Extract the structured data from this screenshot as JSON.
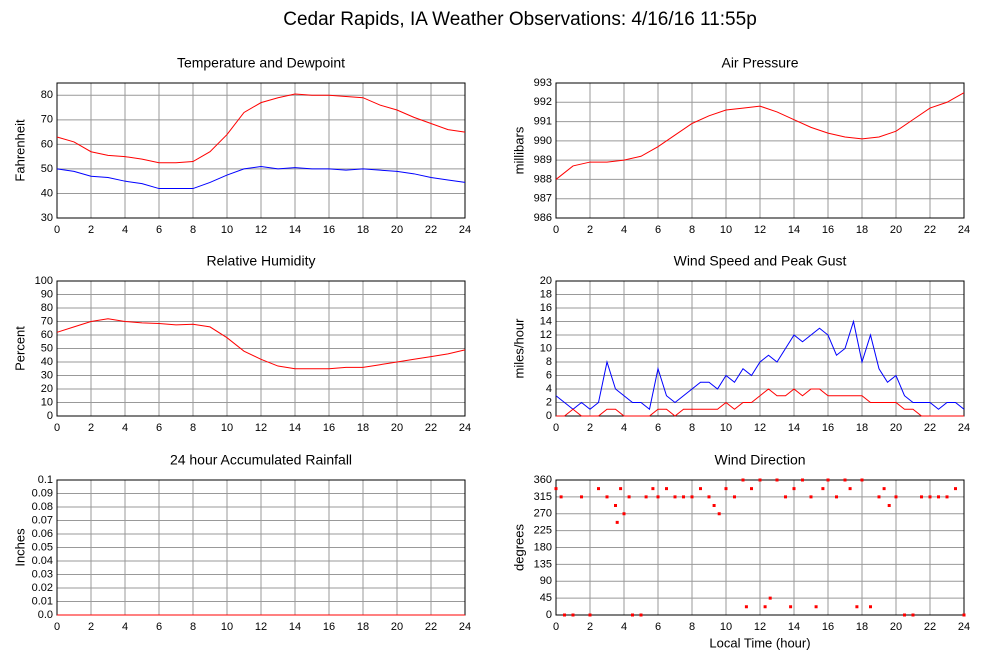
{
  "title": "Cedar Rapids, IA Weather Observations: 4/16/16 11:55p",
  "chart_data": [
    {
      "type": "line",
      "title": "Temperature and Dewpoint",
      "ylabel": "Fahrenheit",
      "x": [
        0,
        1,
        2,
        3,
        4,
        5,
        6,
        7,
        8,
        9,
        10,
        11,
        12,
        13,
        14,
        15,
        16,
        17,
        18,
        19,
        20,
        21,
        22,
        23,
        24
      ],
      "series": [
        {
          "color": "#ff0000",
          "values": [
            63,
            61,
            57,
            55.5,
            55,
            54,
            52.5,
            52.5,
            53,
            57,
            64,
            73,
            77,
            79,
            80.5,
            80,
            80,
            79.5,
            79,
            76,
            74,
            71,
            68.5,
            66,
            65
          ]
        },
        {
          "color": "#0000ff",
          "values": [
            50,
            49,
            47,
            46.5,
            45,
            44,
            42,
            42,
            42,
            44.5,
            47.5,
            50,
            51,
            50,
            50.5,
            50,
            50,
            49.5,
            50,
            49.5,
            49,
            48,
            46.5,
            45.5,
            44.5
          ]
        }
      ],
      "xlim": [
        0,
        24
      ],
      "xticks": [
        0,
        2,
        4,
        6,
        8,
        10,
        12,
        14,
        16,
        18,
        20,
        22,
        24
      ],
      "ylim": [
        30,
        85
      ],
      "yticks": [
        30,
        40,
        50,
        60,
        70,
        80
      ],
      "grid": true
    },
    {
      "type": "line",
      "title": "Air Pressure",
      "ylabel": "millibars",
      "x": [
        0,
        1,
        2,
        3,
        4,
        5,
        6,
        7,
        8,
        9,
        10,
        11,
        12,
        13,
        14,
        15,
        16,
        17,
        18,
        19,
        20,
        21,
        22,
        23,
        24
      ],
      "series": [
        {
          "color": "#ff0000",
          "values": [
            988,
            988.7,
            988.9,
            988.9,
            989,
            989.2,
            989.7,
            990.3,
            990.9,
            991.3,
            991.6,
            991.7,
            991.8,
            991.5,
            991.1,
            990.7,
            990.4,
            990.2,
            990.1,
            990.2,
            990.5,
            991.1,
            991.7,
            992,
            992.5
          ]
        }
      ],
      "xlim": [
        0,
        24
      ],
      "xticks": [
        0,
        2,
        4,
        6,
        8,
        10,
        12,
        14,
        16,
        18,
        20,
        22,
        24
      ],
      "ylim": [
        986,
        993
      ],
      "yticks": [
        986,
        987,
        988,
        989,
        990,
        991,
        992,
        993
      ],
      "grid": true
    },
    {
      "type": "line",
      "title": "Relative Humidity",
      "ylabel": "Percent",
      "x": [
        0,
        1,
        2,
        3,
        4,
        5,
        6,
        7,
        8,
        9,
        10,
        11,
        12,
        13,
        14,
        15,
        16,
        17,
        18,
        19,
        20,
        21,
        22,
        23,
        24
      ],
      "series": [
        {
          "color": "#ff0000",
          "values": [
            62,
            66,
            70,
            72,
            70,
            69,
            68.5,
            67.5,
            68,
            66,
            58,
            48,
            42,
            37,
            35,
            35,
            35,
            36,
            36,
            38,
            40,
            42,
            44,
            46,
            49
          ]
        }
      ],
      "xlim": [
        0,
        24
      ],
      "xticks": [
        0,
        2,
        4,
        6,
        8,
        10,
        12,
        14,
        16,
        18,
        20,
        22,
        24
      ],
      "ylim": [
        0,
        100
      ],
      "yticks": [
        0,
        10,
        20,
        30,
        40,
        50,
        60,
        70,
        80,
        90,
        100
      ],
      "grid": true
    },
    {
      "type": "line",
      "title": "Wind Speed and Peak Gust",
      "ylabel": "miles/hour",
      "x": [
        0,
        0.5,
        1,
        1.5,
        2,
        2.5,
        3,
        3.5,
        4,
        4.5,
        5,
        5.5,
        6,
        6.5,
        7,
        7.5,
        8,
        8.5,
        9,
        9.5,
        10,
        10.5,
        11,
        11.5,
        12,
        12.5,
        13,
        13.5,
        14,
        14.5,
        15,
        15.5,
        16,
        16.5,
        17,
        17.5,
        18,
        18.5,
        19,
        19.5,
        20,
        20.5,
        21,
        21.5,
        22,
        22.5,
        23,
        23.5,
        24
      ],
      "series": [
        {
          "color": "#0000ff",
          "values": [
            3,
            2,
            1,
            2,
            1,
            2,
            8,
            4,
            3,
            2,
            2,
            1,
            7,
            3,
            2,
            3,
            4,
            5,
            5,
            4,
            6,
            5,
            7,
            6,
            8,
            9,
            8,
            10,
            12,
            11,
            12,
            13,
            12,
            9,
            10,
            14,
            8,
            12,
            7,
            5,
            6,
            3,
            2,
            2,
            2,
            1,
            2,
            2,
            1
          ]
        },
        {
          "color": "#ff0000",
          "values": [
            0,
            0,
            1,
            0,
            0,
            0,
            1,
            1,
            0,
            0,
            0,
            0,
            1,
            1,
            0,
            1,
            1,
            1,
            1,
            1,
            2,
            1,
            2,
            2,
            3,
            4,
            3,
            3,
            4,
            3,
            4,
            4,
            3,
            3,
            3,
            3,
            3,
            2,
            2,
            2,
            2,
            1,
            1,
            0,
            0,
            0,
            0,
            0,
            0
          ]
        }
      ],
      "xlim": [
        0,
        24
      ],
      "xticks": [
        0,
        2,
        4,
        6,
        8,
        10,
        12,
        14,
        16,
        18,
        20,
        22,
        24
      ],
      "ylim": [
        0,
        20
      ],
      "yticks": [
        0,
        2,
        4,
        6,
        8,
        10,
        12,
        14,
        16,
        18,
        20
      ],
      "grid": true
    },
    {
      "type": "line",
      "title": "24 hour Accumulated Rainfall",
      "ylabel": "Inches",
      "x": [
        0,
        1,
        2,
        3,
        4,
        5,
        6,
        7,
        8,
        9,
        10,
        11,
        12,
        13,
        14,
        15,
        16,
        17,
        18,
        19,
        20,
        21,
        22,
        23,
        24
      ],
      "series": [
        {
          "color": "#ff0000",
          "values": [
            0,
            0,
            0,
            0,
            0,
            0,
            0,
            0,
            0,
            0,
            0,
            0,
            0,
            0,
            0,
            0,
            0,
            0,
            0,
            0,
            0,
            0,
            0,
            0,
            0
          ]
        }
      ],
      "xlim": [
        0,
        24
      ],
      "xticks": [
        0,
        2,
        4,
        6,
        8,
        10,
        12,
        14,
        16,
        18,
        20,
        22,
        24
      ],
      "ylim": [
        0,
        0.1
      ],
      "yticks": [
        {
          "value": 0,
          "label": "0.0"
        },
        0.01,
        0.02,
        0.03,
        0.04,
        0.05,
        0.06,
        0.07,
        0.08,
        0.09,
        0.1
      ],
      "grid": true
    },
    {
      "type": "scatter",
      "title": "Wind Direction",
      "ylabel": "degrees",
      "xlabel": "Local Time (hour)",
      "x": [
        0,
        0.3,
        0.5,
        1,
        1.5,
        2,
        2.5,
        3,
        3.5,
        3.6,
        3.8,
        4,
        4.3,
        4.5,
        5,
        5.3,
        5.7,
        6,
        6.5,
        7,
        7.5,
        8,
        8.5,
        9,
        9.3,
        9.6,
        10,
        10.5,
        11,
        11.2,
        11.5,
        12,
        12.3,
        12.6,
        13,
        13.5,
        13.8,
        14,
        14.5,
        15,
        15.3,
        15.7,
        16,
        16.5,
        17,
        17.3,
        17.7,
        18,
        18.5,
        19,
        19.3,
        19.6,
        20,
        20.5,
        21,
        21.5,
        22,
        22.5,
        23,
        23.5,
        24
      ],
      "values": [
        337,
        315,
        0,
        0,
        315,
        0,
        337,
        315,
        292,
        247,
        337,
        270,
        315,
        0,
        0,
        315,
        337,
        315,
        337,
        315,
        315,
        315,
        337,
        315,
        292,
        270,
        337,
        315,
        360,
        22,
        337,
        360,
        22,
        45,
        360,
        315,
        22,
        337,
        360,
        315,
        22,
        337,
        360,
        315,
        360,
        337,
        22,
        360,
        22,
        315,
        337,
        292,
        315,
        0,
        0,
        315,
        315,
        315,
        315,
        337,
        0
      ],
      "color": "#ff0000",
      "xlim": [
        0,
        24
      ],
      "xticks": [
        0,
        2,
        4,
        6,
        8,
        10,
        12,
        14,
        16,
        18,
        20,
        22,
        24
      ],
      "ylim": [
        0,
        360
      ],
      "yticks": [
        0,
        45,
        90,
        135,
        180,
        225,
        270,
        315,
        360
      ],
      "grid": true
    }
  ]
}
